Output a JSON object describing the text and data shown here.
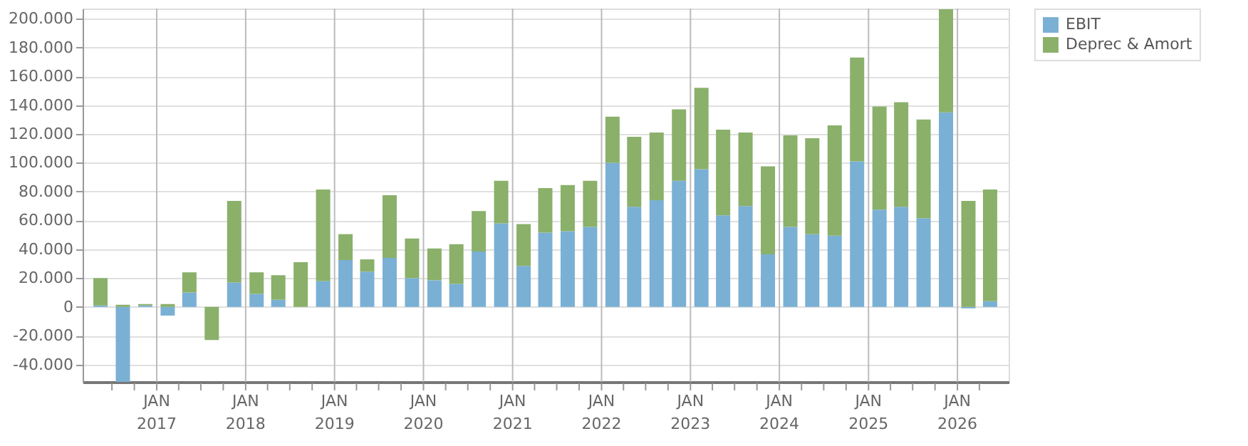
{
  "chart_data": {
    "type": "bar",
    "stacked": true,
    "grid": true,
    "legend": "right",
    "x": [
      "2016-05-15",
      "2016-08-15",
      "2016-11-15",
      "2017-02-15",
      "2017-05-15",
      "2017-08-15",
      "2017-11-15",
      "2018-02-15",
      "2018-05-15",
      "2018-08-15",
      "2018-11-15",
      "2019-02-15",
      "2019-05-15",
      "2019-08-15",
      "2019-11-15",
      "2020-02-15",
      "2020-05-15",
      "2020-08-15",
      "2020-11-15",
      "2021-02-15",
      "2021-05-15",
      "2021-08-15",
      "2021-11-15",
      "2022-02-15",
      "2022-05-15",
      "2022-08-15",
      "2022-11-15",
      "2023-02-15",
      "2023-05-15",
      "2023-08-15",
      "2023-11-15",
      "2024-02-15",
      "2024-05-15",
      "2024-08-15",
      "2024-11-15",
      "2025-02-15",
      "2025-05-15",
      "2025-08-15",
      "2025-11-15",
      "2026-02-15",
      "2026-05-15"
    ],
    "series": [
      {
        "name": "EBIT",
        "color": "#7ab0d4",
        "values": [
          1000,
          -52000,
          1000,
          -6000,
          10000,
          null,
          17000,
          9000,
          5000,
          null,
          18000,
          32500,
          24500,
          34000,
          20000,
          18500,
          16000,
          38500,
          58000,
          28500,
          51500,
          52500,
          55500,
          100000,
          69500,
          74000,
          87500,
          95500,
          63500,
          70000,
          36500,
          55500,
          50500,
          49500,
          101000,
          67500,
          69500,
          61500,
          135000,
          -1000,
          4000
        ]
      },
      {
        "name": "Deprec & Amort",
        "color": "#8ab06a",
        "values": [
          19000,
          1500,
          1000,
          2000,
          14000,
          -23000,
          56500,
          15000,
          17000,
          31000,
          63500,
          18000,
          8500,
          43500,
          27500,
          22000,
          27500,
          28000,
          29500,
          29000,
          31000,
          32000,
          32000,
          32000,
          48500,
          47000,
          49500,
          56500,
          59500,
          51000,
          61000,
          63500,
          66500,
          76500,
          72000,
          71500,
          72500,
          68500,
          71500,
          73500,
          77500
        ]
      }
    ],
    "xlim": [
      "2016-04-01",
      "2026-07-01"
    ],
    "xticks": [
      {
        "value": "2016-07-01",
        "label": null
      },
      {
        "value": "2016-10-01",
        "label": null
      },
      {
        "value": "2017-01-01",
        "label": "JAN\n2017"
      },
      {
        "value": "2017-04-01",
        "label": null
      },
      {
        "value": "2017-07-01",
        "label": null
      },
      {
        "value": "2017-10-01",
        "label": null
      },
      {
        "value": "2018-01-01",
        "label": "JAN\n2018"
      },
      {
        "value": "2018-04-01",
        "label": null
      },
      {
        "value": "2018-07-01",
        "label": null
      },
      {
        "value": "2018-10-01",
        "label": null
      },
      {
        "value": "2019-01-01",
        "label": "JAN\n2019"
      },
      {
        "value": "2019-04-01",
        "label": null
      },
      {
        "value": "2019-07-01",
        "label": null
      },
      {
        "value": "2019-10-01",
        "label": null
      },
      {
        "value": "2020-01-01",
        "label": "JAN\n2020"
      },
      {
        "value": "2020-04-01",
        "label": null
      },
      {
        "value": "2020-07-01",
        "label": null
      },
      {
        "value": "2020-10-01",
        "label": null
      },
      {
        "value": "2021-01-01",
        "label": "JAN\n2021"
      },
      {
        "value": "2021-04-01",
        "label": null
      },
      {
        "value": "2021-07-01",
        "label": null
      },
      {
        "value": "2021-10-01",
        "label": null
      },
      {
        "value": "2022-01-01",
        "label": "JAN\n2022"
      },
      {
        "value": "2022-04-01",
        "label": null
      },
      {
        "value": "2022-07-01",
        "label": null
      },
      {
        "value": "2022-10-01",
        "label": null
      },
      {
        "value": "2023-01-01",
        "label": "JAN\n2023"
      },
      {
        "value": "2023-04-01",
        "label": null
      },
      {
        "value": "2023-07-01",
        "label": null
      },
      {
        "value": "2023-10-01",
        "label": null
      },
      {
        "value": "2024-01-01",
        "label": "JAN\n2024"
      },
      {
        "value": "2024-04-01",
        "label": null
      },
      {
        "value": "2024-07-01",
        "label": null
      },
      {
        "value": "2024-10-01",
        "label": null
      },
      {
        "value": "2025-01-01",
        "label": "JAN\n2025"
      },
      {
        "value": "2025-04-01",
        "label": null
      },
      {
        "value": "2025-07-01",
        "label": null
      },
      {
        "value": "2025-10-01",
        "label": null
      },
      {
        "value": "2026-01-01",
        "label": "JAN\n2026"
      },
      {
        "value": "2026-04-01",
        "label": null
      }
    ],
    "ylim": [
      -52000,
      207000
    ],
    "yticks": [
      {
        "value": -40000,
        "label": "-40.000"
      },
      {
        "value": -20000,
        "label": "-20.000"
      },
      {
        "value": 0,
        "label": "0"
      },
      {
        "value": 20000,
        "label": "20.000"
      },
      {
        "value": 40000,
        "label": "40.000"
      },
      {
        "value": 60000,
        "label": "60.000"
      },
      {
        "value": 80000,
        "label": "80.000"
      },
      {
        "value": 100000,
        "label": "100.000"
      },
      {
        "value": 120000,
        "label": "120.000"
      },
      {
        "value": 140000,
        "label": "140.000"
      },
      {
        "value": 160000,
        "label": "160.000"
      },
      {
        "value": 180000,
        "label": "180.000"
      },
      {
        "value": 200000,
        "label": "200.000"
      }
    ]
  }
}
